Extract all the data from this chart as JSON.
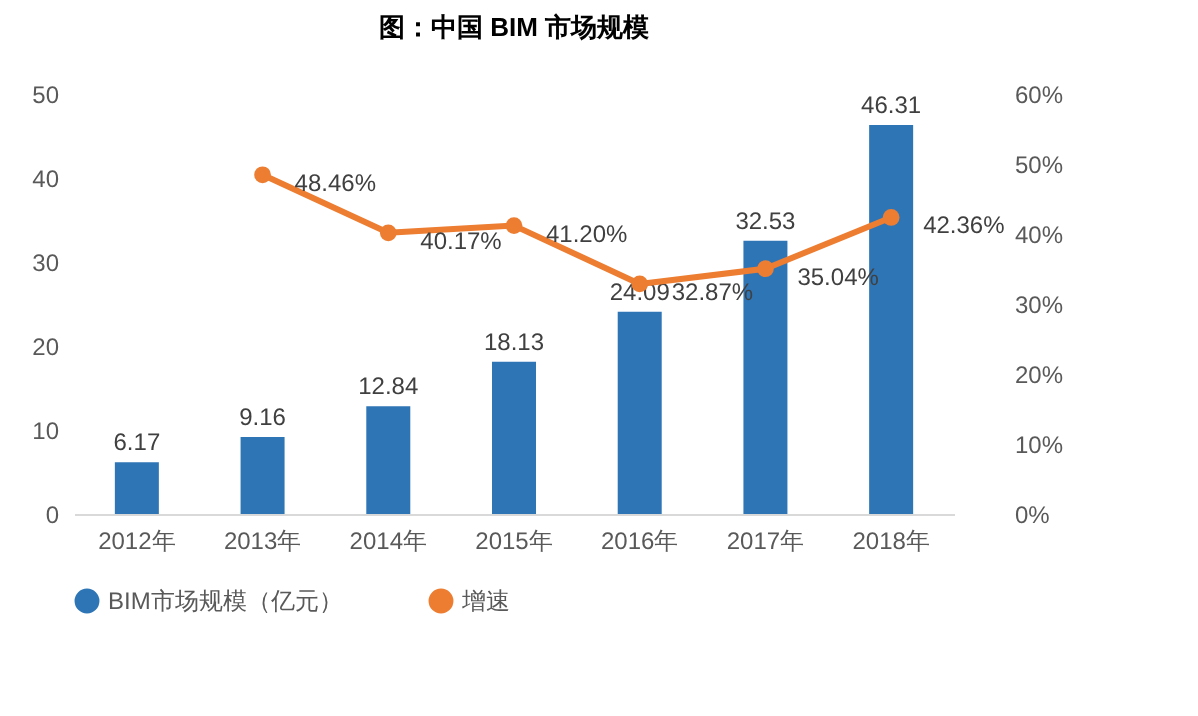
{
  "chart_data": {
    "type": "bar",
    "title": "图：中国 BIM 市场规模",
    "categories": [
      "2012年",
      "2013年",
      "2014年",
      "2015年",
      "2016年",
      "2017年",
      "2018年"
    ],
    "series": [
      {
        "name": "BIM市场规模（亿元）",
        "color": "#2e75b6",
        "values": [
          6.17,
          9.16,
          12.84,
          18.13,
          24.09,
          32.53,
          46.31
        ],
        "value_labels": [
          "6.17",
          "9.16",
          "12.84",
          "18.13",
          "24.09",
          "32.53",
          "46.31"
        ]
      },
      {
        "name": "增速",
        "type": "line",
        "axis": "y2",
        "color": "#ed7d31",
        "marker": "circle",
        "values": [
          null,
          48.46,
          40.17,
          41.2,
          32.87,
          35.04,
          42.36
        ],
        "value_labels": [
          null,
          "48.46%",
          "40.17%",
          "41.20%",
          "32.87%",
          "35.04%",
          "42.36%"
        ]
      }
    ],
    "ylim": [
      0,
      50
    ],
    "yticks": [
      0,
      10,
      20,
      30,
      40,
      50
    ],
    "y2lim": [
      0,
      60
    ],
    "y2ticks": [
      {
        "value": 0,
        "label": "0%"
      },
      {
        "value": 10,
        "label": "10%"
      },
      {
        "value": 20,
        "label": "20%"
      },
      {
        "value": 30,
        "label": "30%"
      },
      {
        "value": 40,
        "label": "40%"
      },
      {
        "value": 50,
        "label": "50%"
      },
      {
        "value": 60,
        "label": "60%"
      }
    ],
    "grid": false,
    "legend": "bottom"
  }
}
